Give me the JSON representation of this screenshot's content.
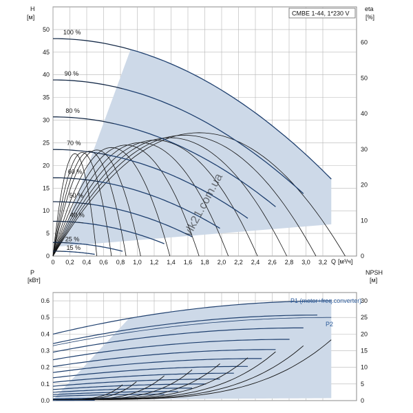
{
  "chart_data": [
    {
      "type": "line",
      "box_label": "CMBE 1-44, 1*230 V",
      "y_title": "H",
      "y_unit": "[м]",
      "y2_title": "eta",
      "y2_unit": "[%]",
      "x_title": "Q",
      "x_unit": "[м³/ч]",
      "x_ticks": [
        "0",
        "0,2",
        "0,4",
        "0,6",
        "0,8",
        "1,0",
        "1,2",
        "1,4",
        "1,6",
        "1,8",
        "2,0",
        "2,2",
        "2,4",
        "2,6",
        "2,8",
        "3,0",
        "3,2"
      ],
      "y_ticks": [
        "0",
        "5",
        "10",
        "15",
        "20",
        "25",
        "30",
        "35",
        "40",
        "45",
        "50"
      ],
      "y2_ticks": [
        "0",
        "10",
        "20",
        "30",
        "40",
        "50",
        "60"
      ],
      "xlim": [
        0,
        3.6
      ],
      "ylim": [
        0,
        55
      ],
      "y2lim": [
        0,
        70
      ],
      "watermark": "vlk21.com.ua",
      "speed_curves": [
        {
          "label": "100 %",
          "fraction": 1.0
        },
        {
          "label": "90 %",
          "fraction": 0.9
        },
        {
          "label": "80 %",
          "fraction": 0.8
        },
        {
          "label": "70 %",
          "fraction": 0.7
        },
        {
          "label": "60 %",
          "fraction": 0.6
        },
        {
          "label": "50 %",
          "fraction": 0.5
        },
        {
          "label": "40 %",
          "fraction": 0.4
        },
        {
          "label": "25 %",
          "fraction": 0.25
        },
        {
          "label": "15 %",
          "fraction": 0.15
        }
      ],
      "h_at_100": {
        "shutoff": 48,
        "qmax": 3.3,
        "hmin": 17
      },
      "eta_peak_percent": 33
    },
    {
      "type": "line",
      "y_title": "P",
      "y_unit": "[кВт]",
      "y2_title": "NPSH",
      "y2_unit": "[м]",
      "y_ticks": [
        "0.0",
        "0.1",
        "0.2",
        "0.3",
        "0.4",
        "0.5",
        "0.6"
      ],
      "y2_ticks": [
        "0",
        "5",
        "10",
        "15",
        "20",
        "25",
        "30"
      ],
      "ylim": [
        0,
        0.65
      ],
      "y2lim": [
        0,
        32.5
      ],
      "series_labels": [
        "P1 (motor+freq.converter)",
        "P2"
      ],
      "p1_at_100": {
        "start": 0.4,
        "end": 0.6
      },
      "p2_at_100": {
        "start": 0.33,
        "end": 0.5
      }
    }
  ],
  "colors": {
    "fill": "#cdd9e8",
    "curve": "#1e3f6e",
    "grid": "#b5b5b5",
    "black": "#111111",
    "label": "#2a5a9a"
  }
}
